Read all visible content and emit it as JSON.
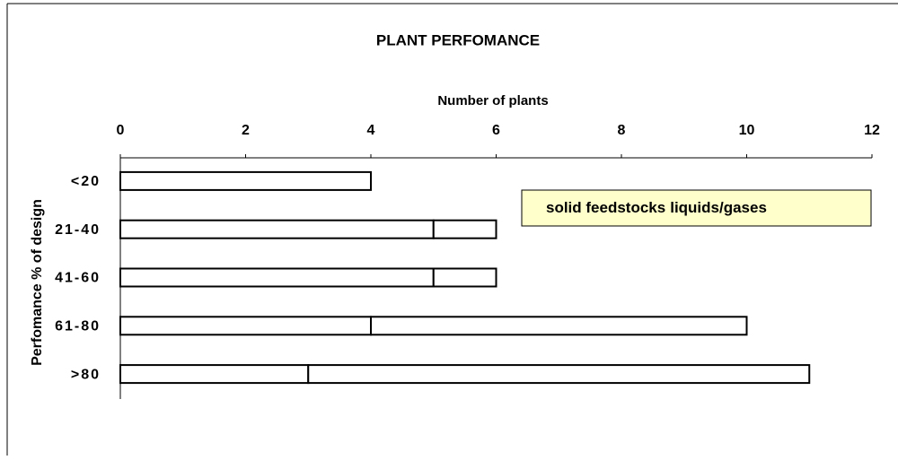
{
  "chart_data": {
    "type": "bar",
    "orientation": "horizontal",
    "stacked": true,
    "title": "PLANT PERFOMANCE",
    "x_label": "Number of plants",
    "y_label": "Perfomance % of design",
    "categories": [
      "<20",
      "21-40",
      "41-60",
      "61-80",
      ">80"
    ],
    "series": [
      {
        "name": "solid feedstocks",
        "color": "#ffffff",
        "values": [
          4,
          5,
          5,
          4,
          3
        ]
      },
      {
        "name": "liquids/gases",
        "color": "#ffffff",
        "values": [
          0,
          1,
          1,
          6,
          8
        ]
      }
    ],
    "xlim": [
      0,
      12
    ],
    "xticks": [
      0,
      2,
      4,
      6,
      8,
      10,
      12
    ],
    "grid": false
  }
}
